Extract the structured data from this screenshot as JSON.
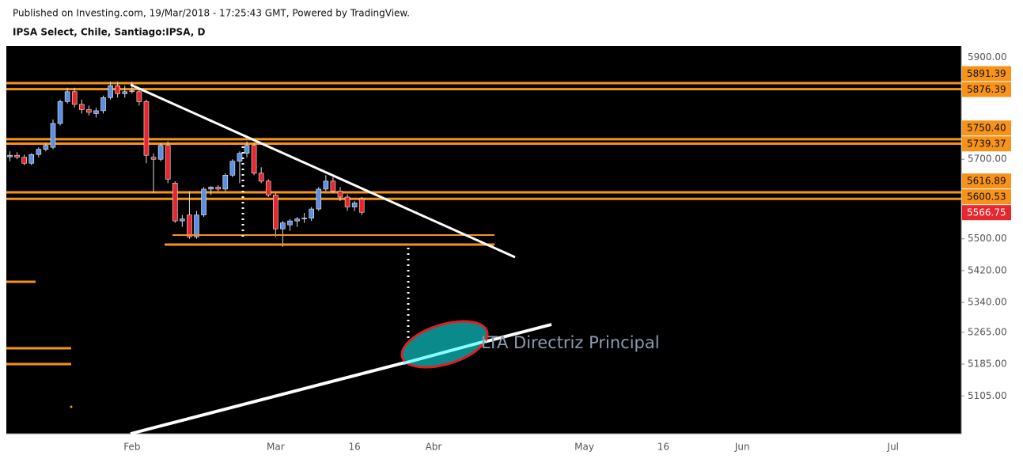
{
  "header": {
    "published": "Published on Investing.com, 19/Mar/2018 - 17:25:43 GMT, Powered by TradingView.",
    "symbol": "IPSA Select, Chile, Santiago:IPSA, D"
  },
  "chart_data": {
    "type": "candlestick",
    "categories": [
      null,
      null,
      null,
      null,
      null,
      null,
      null,
      null,
      null,
      null,
      null,
      null,
      null,
      null,
      null,
      null,
      null,
      "Feb",
      null,
      null,
      null,
      null,
      null,
      null,
      null,
      null,
      null,
      null,
      null,
      null,
      null,
      null,
      null,
      null,
      null,
      null,
      null,
      "Mar",
      null,
      null,
      null,
      null,
      null,
      null,
      null,
      null,
      null,
      null,
      "16",
      null,
      null,
      null,
      null,
      null,
      null,
      null,
      null,
      null,
      null,
      "Abr",
      null,
      null,
      null,
      null,
      null,
      null,
      null,
      null,
      null,
      null,
      null,
      null,
      null,
      null,
      null,
      null,
      null,
      null,
      null,
      null,
      "May",
      null,
      null,
      null,
      null,
      null,
      null,
      null,
      null,
      null,
      null,
      "16",
      null,
      null,
      null,
      null,
      null,
      null,
      null,
      null,
      null,
      null,
      "Jun",
      null,
      null,
      null,
      null,
      null,
      null,
      null,
      null,
      null,
      null,
      null,
      null,
      null,
      null,
      null,
      null,
      null,
      null,
      null,
      null,
      "Jul",
      null,
      null,
      null,
      null,
      null,
      null,
      null,
      null,
      null
    ],
    "open": [
      5706,
      5710,
      5705,
      5690,
      5712,
      5725,
      5730,
      5790,
      5845,
      5870,
      5838,
      5825,
      5815,
      5822,
      5855,
      5885,
      5865,
      5870,
      5870,
      5845,
      5705,
      5700,
      5735,
      5640,
      5545,
      5560,
      5505,
      5560,
      5625,
      5630,
      5625,
      5660,
      5695,
      5715,
      5735,
      5665,
      5645,
      5610,
      5525,
      5535,
      5545,
      5550,
      5552,
      5575,
      5625,
      5645,
      5620,
      5605,
      5580,
      5600,
      null,
      null,
      null,
      null,
      null,
      null,
      null,
      null,
      null,
      null,
      null,
      null,
      null,
      null,
      null,
      null,
      null,
      null,
      null,
      null,
      null,
      null,
      null,
      null,
      null,
      null,
      null,
      null,
      null,
      null,
      null,
      null,
      null,
      null,
      null,
      null,
      null,
      null,
      null,
      null,
      null,
      null,
      null,
      null,
      null,
      null,
      null,
      null,
      null,
      null,
      null,
      null,
      null,
      null,
      null,
      null,
      null,
      null,
      null,
      null,
      null,
      null,
      null,
      null,
      null,
      null,
      null,
      null,
      null,
      null,
      null,
      null,
      null,
      null,
      null,
      null,
      null,
      null,
      null,
      null,
      null,
      null,
      null
    ],
    "high": [
      5720,
      5718,
      5712,
      5715,
      5730,
      5740,
      5800,
      5850,
      5880,
      5880,
      5850,
      5835,
      5830,
      5860,
      5895,
      5895,
      5885,
      5895,
      5875,
      5850,
      5715,
      5740,
      5745,
      5645,
      5560,
      5620,
      5570,
      5630,
      5632,
      5635,
      5665,
      5700,
      5720,
      5745,
      5740,
      5680,
      5650,
      5615,
      5545,
      5550,
      5555,
      5565,
      5580,
      5630,
      5660,
      5655,
      5630,
      5612,
      5595,
      5605,
      null,
      null,
      null,
      null,
      null,
      null,
      null,
      null,
      null,
      null,
      null,
      null,
      null,
      null,
      null,
      null,
      null,
      null,
      null,
      null,
      null,
      null,
      null,
      null,
      null,
      null,
      null,
      null,
      null,
      null,
      null,
      null,
      null,
      null,
      null,
      null,
      null,
      null,
      null,
      null,
      null,
      null,
      null,
      null,
      null,
      null,
      null,
      null,
      null,
      null,
      null,
      null,
      null,
      null,
      null,
      null,
      null,
      null,
      null,
      null,
      null,
      null,
      null,
      null,
      null,
      null,
      null,
      null,
      null,
      null,
      null,
      null,
      null,
      null,
      null,
      null,
      null,
      null,
      null,
      null,
      null,
      null,
      null
    ],
    "low": [
      5695,
      5700,
      5685,
      5685,
      5705,
      5720,
      5725,
      5785,
      5840,
      5830,
      5815,
      5810,
      5805,
      5815,
      5850,
      5855,
      5855,
      5865,
      5835,
      5690,
      5615,
      5695,
      5640,
      5540,
      5530,
      5500,
      5500,
      5555,
      5610,
      5620,
      5620,
      5655,
      5640,
      5705,
      5660,
      5640,
      5605,
      5505,
      5480,
      5520,
      5530,
      5540,
      5545,
      5570,
      5620,
      5615,
      5595,
      5570,
      5570,
      5560,
      null,
      null,
      null,
      null,
      null,
      null,
      null,
      null,
      null,
      null,
      null,
      null,
      null,
      null,
      null,
      null,
      null,
      null,
      null,
      null,
      null,
      null,
      null,
      null,
      null,
      null,
      null,
      null,
      null,
      null,
      null,
      null,
      null,
      null,
      null,
      null,
      null,
      null,
      null,
      null,
      null,
      null,
      null,
      null,
      null,
      null,
      null,
      null,
      null,
      null,
      null,
      null,
      null,
      null,
      null,
      null,
      null,
      null,
      null,
      null,
      null,
      null,
      null,
      null,
      null,
      null,
      null,
      null,
      null,
      null,
      null,
      null,
      null,
      null,
      null,
      null,
      null,
      null,
      null,
      null,
      null,
      null,
      null
    ],
    "close": [
      5710,
      5705,
      5690,
      5712,
      5725,
      5735,
      5790,
      5845,
      5870,
      5838,
      5825,
      5818,
      5822,
      5855,
      5885,
      5865,
      5870,
      5872,
      5845,
      5710,
      5700,
      5735,
      5650,
      5545,
      5550,
      5505,
      5560,
      5625,
      5630,
      5625,
      5660,
      5695,
      5715,
      5735,
      5665,
      5645,
      5610,
      5525,
      5540,
      5545,
      5550,
      5552,
      5575,
      5625,
      5645,
      5620,
      5605,
      5580,
      5590,
      5566.75,
      null,
      null,
      null,
      null,
      null,
      null,
      null,
      null,
      null,
      null,
      null,
      null,
      null,
      null,
      null,
      null,
      null,
      null,
      null,
      null,
      null,
      null,
      null,
      null,
      null,
      null,
      null,
      null,
      null,
      null,
      null,
      null,
      null,
      null,
      null,
      null,
      null,
      null,
      null,
      null,
      null,
      null,
      null,
      null,
      null,
      null,
      null,
      null,
      null,
      null,
      null,
      null,
      null,
      null,
      null,
      null,
      null,
      null,
      null,
      null,
      null,
      null,
      null,
      null,
      null,
      null,
      null,
      null,
      null,
      null,
      null,
      null,
      null,
      null,
      null,
      null,
      null,
      null,
      null,
      null,
      null,
      null,
      null
    ],
    "up_color": "#5b8fe6",
    "down_color": "#e8262e",
    "ylim": [
      5010,
      5985
    ],
    "yticks": [
      {
        "value": 5900,
        "label": "5900.00"
      },
      {
        "value": 5700,
        "label": "5700.00"
      },
      {
        "value": 5500,
        "label": "5500.00"
      },
      {
        "value": 5420,
        "label": "5420.00"
      },
      {
        "value": 5340,
        "label": "5340.00"
      },
      {
        "value": 5265,
        "label": "5265.00"
      },
      {
        "value": 5185,
        "label": "5185.00"
      },
      {
        "value": 5105,
        "label": "5105.00"
      }
    ],
    "levels": [
      5891.39,
      5876.39,
      {
        "value": 5750.4,
        "label": "5750.40"
      },
      5739.37,
      5616.89,
      5600.53
    ],
    "level_color": "#f7931a",
    "annotations": [
      "LTA Directriz Principal"
    ]
  }
}
